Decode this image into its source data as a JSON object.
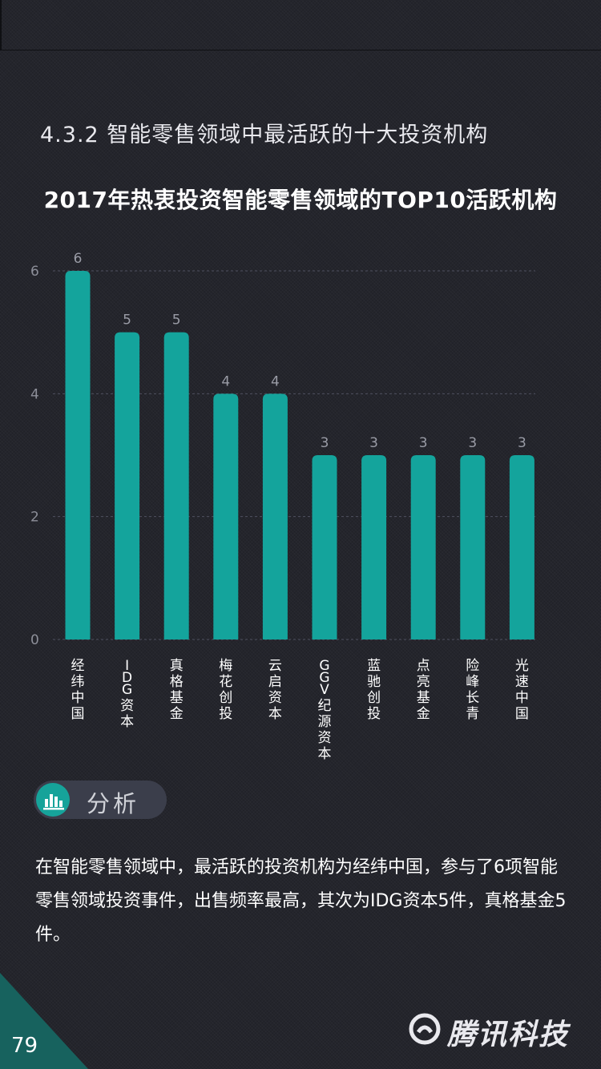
{
  "section_title": "4.3.2 智能零售领域中最活跃的十大投资机构",
  "chart_data": {
    "type": "bar",
    "title": "2017年热衷投资智能零售领域的TOP10活跃机构",
    "categories": [
      "经纬中国",
      "IDG资本",
      "真格基金",
      "梅花创投",
      "云启资本",
      "GGV纪源资本",
      "蓝驰创投",
      "点亮基金",
      "险峰长青",
      "光速中国"
    ],
    "values": [
      6,
      5,
      5,
      4,
      4,
      3,
      3,
      3,
      3,
      3
    ],
    "ylim": [
      0,
      6
    ],
    "yticks": [
      0,
      2,
      4,
      6
    ],
    "grid": true,
    "bar_color": "#14a49c"
  },
  "analysis": {
    "label": "分析",
    "text": "在智能零售领域中，最活跃的投资机构为经纬中国，参与了6项智能零售领域投资事件，出售频率最高，其次为IDG资本5件，真格基金5件。"
  },
  "footer": {
    "page_number": "79",
    "brand": "腾讯科技"
  },
  "colors": {
    "accent": "#14a49c",
    "background": "#24252c"
  }
}
